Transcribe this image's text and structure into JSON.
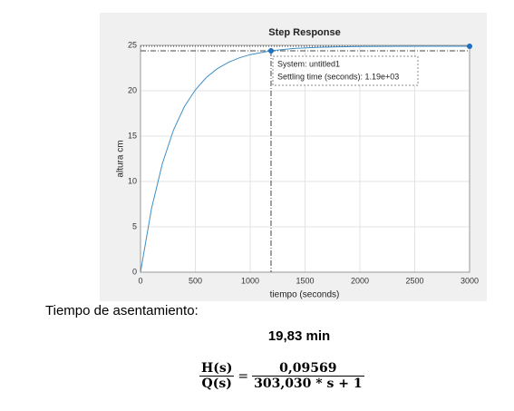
{
  "chart_data": {
    "type": "line",
    "title": "Step Response",
    "xlabel": "tiempo (seconds)",
    "ylabel": "altura cm",
    "x": [
      0,
      100,
      200,
      300,
      400,
      500,
      600,
      700,
      800,
      900,
      1000,
      1200,
      1400,
      1600,
      1800,
      2000,
      2500,
      3000
    ],
    "series": [
      {
        "color": "#3d8fc7",
        "values": [
          0,
          7.0,
          12.0,
          15.65,
          18.25,
          20.1,
          21.46,
          22.43,
          23.12,
          23.62,
          23.98,
          24.42,
          24.66,
          24.77,
          24.84,
          24.87,
          24.9,
          24.9
        ]
      }
    ],
    "markers": [
      {
        "x": 1190,
        "y": 24.4
      },
      {
        "x": 3000,
        "y": 24.9
      }
    ],
    "tooltip": [
      "System: untitled1",
      "Settling time (seconds): 1.19e+03"
    ],
    "xlim": [
      0,
      3000
    ],
    "xticks": [
      0,
      500,
      1000,
      1500,
      2000,
      2500,
      3000
    ],
    "ylim": [
      0,
      25
    ],
    "yticks": [
      0,
      5,
      10,
      15,
      20,
      25
    ],
    "grid": true
  },
  "caption": "Tiempo de asentamiento:",
  "result": "19,83 min",
  "equation": {
    "lhs_num": "H(s)",
    "lhs_den": "Q(s)",
    "rhs_num": "0,09569",
    "rhs_den": "303,030 * s + 1"
  }
}
